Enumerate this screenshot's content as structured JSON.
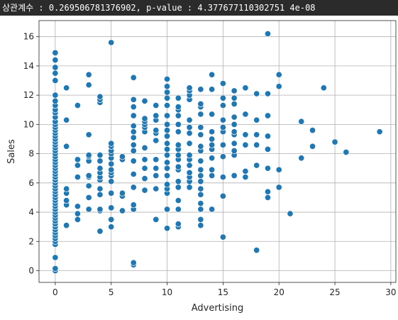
{
  "header": {
    "text": "상관계수 : 0.269506781376902, p-value : 4.377677110302751 4e-08"
  },
  "chart_data": {
    "type": "scatter",
    "title": "",
    "xlabel": "Advertising",
    "ylabel": "Sales",
    "xlim": [
      -1.45,
      30.45
    ],
    "ylim": [
      -0.8,
      17.1
    ],
    "xticks": [
      0,
      5,
      10,
      15,
      20,
      25,
      30
    ],
    "yticks": [
      0,
      2,
      4,
      6,
      8,
      10,
      12,
      14,
      16
    ],
    "grid": true,
    "marker_color": "#1f77b4",
    "points": [
      [
        0,
        0.0
      ],
      [
        0,
        0.15
      ],
      [
        0,
        0.9
      ],
      [
        0,
        1.8
      ],
      [
        0,
        2.0
      ],
      [
        0,
        2.2
      ],
      [
        0,
        2.4
      ],
      [
        0,
        2.6
      ],
      [
        0,
        2.8
      ],
      [
        0,
        3.0
      ],
      [
        0,
        3.2
      ],
      [
        0,
        3.4
      ],
      [
        0,
        3.6
      ],
      [
        0,
        3.8
      ],
      [
        0,
        4.0
      ],
      [
        0,
        4.2
      ],
      [
        0,
        4.4
      ],
      [
        0,
        4.6
      ],
      [
        0,
        4.8
      ],
      [
        0,
        5.0
      ],
      [
        0,
        5.2
      ],
      [
        0,
        5.4
      ],
      [
        0,
        5.6
      ],
      [
        0,
        5.8
      ],
      [
        0,
        6.0
      ],
      [
        0,
        6.2
      ],
      [
        0,
        6.4
      ],
      [
        0,
        6.6
      ],
      [
        0,
        6.8
      ],
      [
        0,
        7.0
      ],
      [
        0,
        7.2
      ],
      [
        0,
        7.4
      ],
      [
        0,
        7.6
      ],
      [
        0,
        7.8
      ],
      [
        0,
        8.0
      ],
      [
        0,
        8.2
      ],
      [
        0,
        8.4
      ],
      [
        0,
        8.6
      ],
      [
        0,
        8.8
      ],
      [
        0,
        9.0
      ],
      [
        0,
        9.2
      ],
      [
        0,
        9.4
      ],
      [
        0,
        9.6
      ],
      [
        0,
        9.8
      ],
      [
        0,
        10.0
      ],
      [
        0,
        10.2
      ],
      [
        0,
        10.5
      ],
      [
        0,
        10.8
      ],
      [
        0,
        11.0
      ],
      [
        0,
        11.3
      ],
      [
        0,
        11.6
      ],
      [
        0,
        12.0
      ],
      [
        0,
        13.0
      ],
      [
        0,
        13.5
      ],
      [
        0,
        13.9
      ],
      [
        0,
        14.4
      ],
      [
        0,
        14.9
      ],
      [
        1,
        3.1
      ],
      [
        1,
        4.5
      ],
      [
        1,
        4.8
      ],
      [
        1,
        5.3
      ],
      [
        1,
        5.6
      ],
      [
        1,
        8.5
      ],
      [
        1,
        10.3
      ],
      [
        1,
        12.5
      ],
      [
        2,
        3.5
      ],
      [
        2,
        3.9
      ],
      [
        2,
        4.4
      ],
      [
        2,
        6.4
      ],
      [
        2,
        7.2
      ],
      [
        2,
        7.6
      ],
      [
        2,
        11.3
      ],
      [
        3,
        4.2
      ],
      [
        3,
        5.0
      ],
      [
        3,
        5.8
      ],
      [
        3,
        6.4
      ],
      [
        3,
        6.5
      ],
      [
        3,
        7.5
      ],
      [
        3,
        7.8
      ],
      [
        3,
        7.9
      ],
      [
        3,
        9.3
      ],
      [
        3,
        12.7
      ],
      [
        3,
        13.4
      ],
      [
        4,
        2.7
      ],
      [
        4,
        4.1
      ],
      [
        4,
        4.2
      ],
      [
        4,
        5.2
      ],
      [
        4,
        5.6
      ],
      [
        4,
        6.2
      ],
      [
        4,
        6.4
      ],
      [
        4,
        6.7
      ],
      [
        4,
        7.0
      ],
      [
        4,
        7.5
      ],
      [
        4,
        7.9
      ],
      [
        4,
        11.5
      ],
      [
        4,
        11.7
      ],
      [
        4,
        11.9
      ],
      [
        5,
        3.0
      ],
      [
        5,
        3.5
      ],
      [
        5,
        4.3
      ],
      [
        5,
        5.3
      ],
      [
        5,
        6.1
      ],
      [
        5,
        6.5
      ],
      [
        5,
        6.7
      ],
      [
        5,
        6.9
      ],
      [
        5,
        7.3
      ],
      [
        5,
        7.7
      ],
      [
        5,
        8.0
      ],
      [
        5,
        8.2
      ],
      [
        5,
        8.5
      ],
      [
        5,
        8.7
      ],
      [
        5,
        15.6
      ],
      [
        6,
        4.1
      ],
      [
        6,
        5.1
      ],
      [
        6,
        5.3
      ],
      [
        6,
        7.6
      ],
      [
        6,
        7.8
      ],
      [
        7,
        0.4
      ],
      [
        7,
        0.55
      ],
      [
        7,
        4.2
      ],
      [
        7,
        4.5
      ],
      [
        7,
        5.7
      ],
      [
        7,
        6.6
      ],
      [
        7,
        7.5
      ],
      [
        7,
        8.2
      ],
      [
        7,
        8.6
      ],
      [
        7,
        9.1
      ],
      [
        7,
        9.5
      ],
      [
        7,
        9.9
      ],
      [
        7,
        10.6
      ],
      [
        7,
        11.2
      ],
      [
        7,
        11.7
      ],
      [
        7,
        13.2
      ],
      [
        8,
        5.5
      ],
      [
        8,
        6.3
      ],
      [
        8,
        7.0
      ],
      [
        8,
        7.6
      ],
      [
        8,
        8.4
      ],
      [
        8,
        9.5
      ],
      [
        8,
        9.8
      ],
      [
        8,
        10.0
      ],
      [
        8,
        10.2
      ],
      [
        8,
        10.4
      ],
      [
        8,
        11.6
      ],
      [
        9,
        3.5
      ],
      [
        9,
        5.6
      ],
      [
        9,
        6.5
      ],
      [
        9,
        7.0
      ],
      [
        9,
        7.6
      ],
      [
        9,
        8.9
      ],
      [
        9,
        9.4
      ],
      [
        9,
        9.6
      ],
      [
        9,
        10.3
      ],
      [
        9,
        10.6
      ],
      [
        9,
        11.3
      ],
      [
        10,
        2.9
      ],
      [
        10,
        4.2
      ],
      [
        10,
        5.3
      ],
      [
        10,
        5.6
      ],
      [
        10,
        5.9
      ],
      [
        10,
        6.5
      ],
      [
        10,
        7.0
      ],
      [
        10,
        7.4
      ],
      [
        10,
        7.9
      ],
      [
        10,
        8.3
      ],
      [
        10,
        8.7
      ],
      [
        10,
        9.2
      ],
      [
        10,
        9.6
      ],
      [
        10,
        10.0
      ],
      [
        10,
        10.6
      ],
      [
        10,
        11.3
      ],
      [
        10,
        11.8
      ],
      [
        10,
        12.2
      ],
      [
        10,
        12.6
      ],
      [
        10,
        13.1
      ],
      [
        11,
        3.0
      ],
      [
        11,
        3.2
      ],
      [
        11,
        4.2
      ],
      [
        11,
        4.8
      ],
      [
        11,
        5.7
      ],
      [
        11,
        6.1
      ],
      [
        11,
        6.9
      ],
      [
        11,
        7.1
      ],
      [
        11,
        7.6
      ],
      [
        11,
        7.9
      ],
      [
        11,
        8.3
      ],
      [
        11,
        8.6
      ],
      [
        11,
        9.5
      ],
      [
        11,
        10.0
      ],
      [
        11,
        10.6
      ],
      [
        11,
        11.0
      ],
      [
        11,
        11.2
      ],
      [
        11,
        11.8
      ],
      [
        12,
        5.7
      ],
      [
        12,
        6.1
      ],
      [
        12,
        6.4
      ],
      [
        12,
        6.7
      ],
      [
        12,
        7.2
      ],
      [
        12,
        7.6
      ],
      [
        12,
        7.9
      ],
      [
        12,
        8.7
      ],
      [
        12,
        9.4
      ],
      [
        12,
        9.8
      ],
      [
        12,
        10.3
      ],
      [
        12,
        11.7
      ],
      [
        12,
        12.0
      ],
      [
        12,
        12.3
      ],
      [
        12,
        12.5
      ],
      [
        13,
        3.1
      ],
      [
        13,
        3.5
      ],
      [
        13,
        4.2
      ],
      [
        13,
        4.6
      ],
      [
        13,
        5.2
      ],
      [
        13,
        5.6
      ],
      [
        13,
        6.1
      ],
      [
        13,
        6.5
      ],
      [
        13,
        6.9
      ],
      [
        13,
        7.5
      ],
      [
        13,
        8.2
      ],
      [
        13,
        8.5
      ],
      [
        13,
        9.3
      ],
      [
        13,
        9.8
      ],
      [
        13,
        10.7
      ],
      [
        13,
        11.2
      ],
      [
        13,
        11.4
      ],
      [
        13,
        12.4
      ],
      [
        14,
        4.2
      ],
      [
        14,
        6.5
      ],
      [
        14,
        6.9
      ],
      [
        14,
        7.7
      ],
      [
        14,
        8.3
      ],
      [
        14,
        8.6
      ],
      [
        14,
        9.0
      ],
      [
        14,
        9.5
      ],
      [
        14,
        10.7
      ],
      [
        14,
        12.4
      ],
      [
        14,
        13.4
      ],
      [
        15,
        2.3
      ],
      [
        15,
        5.1
      ],
      [
        15,
        6.4
      ],
      [
        15,
        7.8
      ],
      [
        15,
        8.6
      ],
      [
        15,
        9.5
      ],
      [
        15,
        9.8
      ],
      [
        15,
        10.3
      ],
      [
        15,
        11.3
      ],
      [
        15,
        11.8
      ],
      [
        15,
        12.8
      ],
      [
        16,
        6.5
      ],
      [
        16,
        7.9
      ],
      [
        16,
        8.2
      ],
      [
        16,
        8.7
      ],
      [
        16,
        9.3
      ],
      [
        16,
        9.5
      ],
      [
        16,
        10.0
      ],
      [
        16,
        10.5
      ],
      [
        16,
        11.4
      ],
      [
        16,
        11.8
      ],
      [
        16,
        12.3
      ],
      [
        17,
        6.4
      ],
      [
        17,
        6.8
      ],
      [
        17,
        8.6
      ],
      [
        17,
        9.3
      ],
      [
        17,
        10.7
      ],
      [
        17,
        12.5
      ],
      [
        18,
        1.4
      ],
      [
        18,
        7.2
      ],
      [
        18,
        8.6
      ],
      [
        18,
        9.3
      ],
      [
        18,
        10.3
      ],
      [
        18,
        12.1
      ],
      [
        19,
        5.0
      ],
      [
        19,
        5.4
      ],
      [
        19,
        7.0
      ],
      [
        19,
        8.3
      ],
      [
        19,
        9.2
      ],
      [
        19,
        10.6
      ],
      [
        19,
        12.1
      ],
      [
        19,
        16.2
      ],
      [
        20,
        5.7
      ],
      [
        20,
        6.9
      ],
      [
        20,
        12.6
      ],
      [
        20,
        13.4
      ],
      [
        21,
        3.9
      ],
      [
        22,
        7.7
      ],
      [
        22,
        10.2
      ],
      [
        23,
        8.5
      ],
      [
        23,
        9.6
      ],
      [
        24,
        12.5
      ],
      [
        25,
        8.8
      ],
      [
        26,
        8.1
      ],
      [
        29,
        9.5
      ]
    ]
  }
}
